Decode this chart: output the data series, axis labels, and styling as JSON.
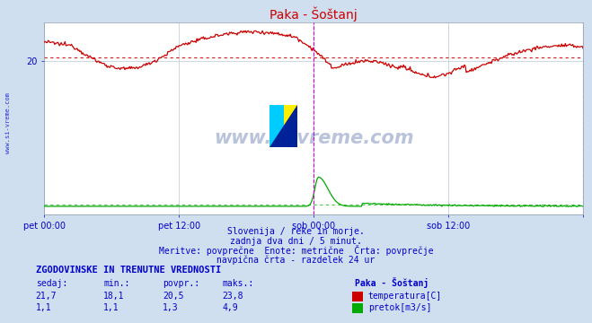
{
  "title": "Paka - Šoštanj",
  "bg_color": "#d0dff0",
  "plot_bg_color": "#ffffff",
  "grid_color": "#b8c8d8",
  "text_color": "#0000cc",
  "subtitle_lines": [
    "Slovenija / reke in morje.",
    "zadnja dva dni / 5 minut.",
    "Meritve: povprečne  Enote: metrične  Črta: povprečje",
    "navpična črta - razdelek 24 ur"
  ],
  "table_header": "ZGODOVINSKE IN TRENUTNE VREDNOSTI",
  "table_cols": [
    "sedaj:",
    "min.:",
    "povpr.:",
    "maks.:"
  ],
  "table_series": "Paka - Šoštanj",
  "row1": {
    "sedaj": "21,7",
    "min": "18,1",
    "povpr": "20,5",
    "maks": "23,8",
    "label": "temperatura[C]",
    "color": "#cc0000"
  },
  "row2": {
    "sedaj": "1,1",
    "min": "1,1",
    "povpr": "1,3",
    "maks": "4,9",
    "label": "pretok[m3/s]",
    "color": "#00aa00"
  },
  "temp_avg": 20.5,
  "flow_avg": 1.3,
  "xlim": [
    0,
    576
  ],
  "ylim": [
    0,
    25
  ],
  "x_ticks": [
    0,
    144,
    288,
    432,
    576
  ],
  "x_labels": [
    "pet 00:00",
    "pet 12:00",
    "sob 00:00",
    "sob 12:00",
    ""
  ],
  "y_ticks": [
    20
  ],
  "vline1_x": 288,
  "vline2_x": 576,
  "vline_color": "#dd00dd",
  "watermark_text": "www.si-vreme.com",
  "watermark_color": "#1a3a8a",
  "title_color": "#cc0000",
  "left_label": "www.si-vreme.com"
}
